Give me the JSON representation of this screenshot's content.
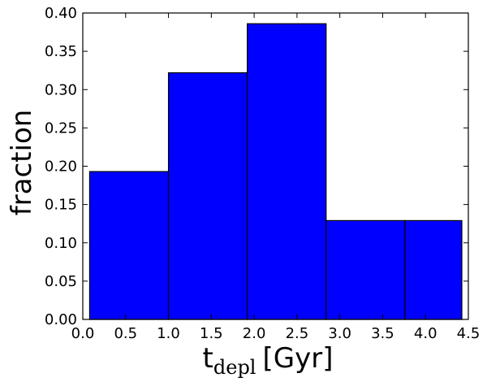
{
  "chart_data": {
    "type": "bar",
    "bins": [
      {
        "x_start": 0.08,
        "x_end": 1.0,
        "value": 0.193
      },
      {
        "x_start": 1.0,
        "x_end": 1.92,
        "value": 0.322
      },
      {
        "x_start": 1.92,
        "x_end": 2.84,
        "value": 0.386
      },
      {
        "x_start": 2.84,
        "x_end": 3.76,
        "value": 0.129
      },
      {
        "x_start": 3.76,
        "x_end": 4.68,
        "value": 0.129
      }
    ],
    "xlabel": {
      "main": "t",
      "subscript": "depl",
      "unit": "[Gyr]"
    },
    "ylabel": "fraction",
    "xlim": [
      0.0,
      4.5
    ],
    "ylim": [
      0.0,
      0.4
    ],
    "xticks": [
      "0.0",
      "0.5",
      "1.0",
      "1.5",
      "2.0",
      "2.5",
      "3.0",
      "3.5",
      "4.0",
      "4.5"
    ],
    "yticks": [
      "0.00",
      "0.05",
      "0.10",
      "0.15",
      "0.20",
      "0.25",
      "0.30",
      "0.35",
      "0.40"
    ],
    "bar_color": "#0000ff",
    "edge_color": "#000000",
    "grid": false
  }
}
